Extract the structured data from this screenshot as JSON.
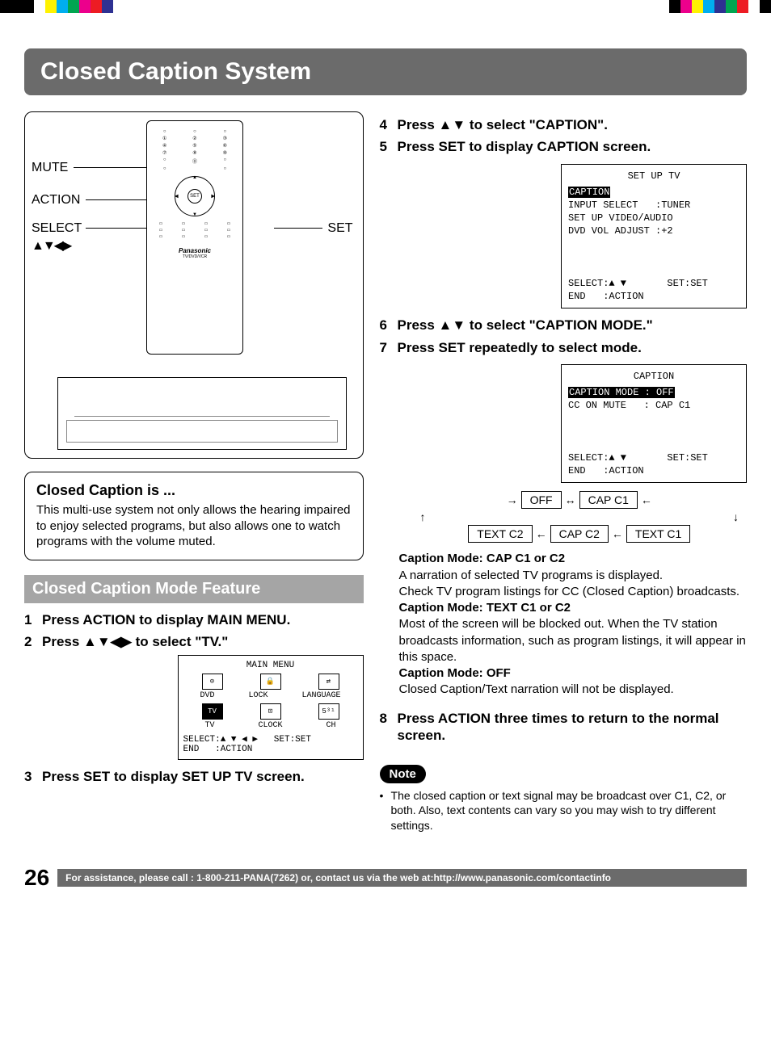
{
  "color_bars": {
    "left": [
      "#000000",
      "#000000",
      "#000000",
      "#ffffff",
      "#fff200",
      "#00aeef",
      "#00a651",
      "#ec008c",
      "#ed1c24",
      "#2e3192"
    ],
    "right": [
      "#ffffff",
      "#000000",
      "#ec008c",
      "#fff200",
      "#00aeef",
      "#2e3192",
      "#00a651",
      "#ed1c24",
      "#ffffff",
      "#000000"
    ]
  },
  "page": {
    "title": "Closed Caption System",
    "number": "26",
    "assistance": "For assistance, please call : 1-800-211-PANA(7262) or, contact us via the web at:http://www.panasonic.com/contactinfo"
  },
  "remote_labels": {
    "mute": "MUTE",
    "action": "ACTION",
    "select": "SELECT",
    "select_arrows": "▲▼◀▶",
    "set": "SET",
    "brand": "Panasonic",
    "model": "TV/DVD/VCR"
  },
  "info_box": {
    "heading": "Closed Caption is ...",
    "body": "This multi-use system not only allows the hearing impaired to enjoy selected programs, but also allows one to watch programs with the volume muted."
  },
  "section_header": "Closed Caption Mode Feature",
  "steps": {
    "s1": "Press ACTION to display MAIN MENU.",
    "s2": "Press ▲▼◀▶ to select \"TV.\"",
    "s3": "Press SET to display SET UP TV screen.",
    "s4": "Press ▲▼ to select \"CAPTION\".",
    "s5": "Press SET to display CAPTION screen.",
    "s6": "Press ▲▼ to select \"CAPTION MODE.\"",
    "s7": "Press SET repeatedly to select mode.",
    "s8": "Press ACTION three times to return to the normal screen."
  },
  "osd_main_menu": {
    "title": "MAIN MENU",
    "row1": [
      "DVD",
      "LOCK",
      "LANGUAGE"
    ],
    "row2": [
      "TV",
      "CLOCK",
      "CH"
    ],
    "selected": "TV",
    "footer": "SELECT:▲ ▼ ◀ ▶   SET:SET\nEND   :ACTION"
  },
  "osd_setup_tv": {
    "title": "SET UP TV",
    "highlight": "CAPTION",
    "lines": "INPUT SELECT   :TUNER\nSET UP VIDEO/AUDIO\nDVD VOL ADJUST :+2",
    "footer": "SELECT:▲ ▼       SET:SET\nEND   :ACTION"
  },
  "osd_caption": {
    "title": "CAPTION",
    "highlight": "CAPTION MODE : OFF",
    "lines": "CC ON MUTE   : CAP C1",
    "footer": "SELECT:▲ ▼       SET:SET\nEND   :ACTION"
  },
  "flow": {
    "boxes": [
      "OFF",
      "CAP C1",
      "TEXT C2",
      "CAP C2",
      "TEXT C1"
    ]
  },
  "mode_desc": {
    "h1": "Caption Mode: CAP C1 or C2",
    "p1": "A narration of selected TV programs is displayed.\nCheck TV program listings for CC (Closed Caption) broadcasts.",
    "h2": "Caption Mode: TEXT C1 or C2",
    "p2": "Most of the screen will be blocked out. When the TV station broadcasts information, such as program listings, it will appear in this space.",
    "h3": "Caption Mode: OFF",
    "p3": "Closed Caption/Text narration will not be displayed."
  },
  "note": {
    "label": "Note",
    "text": "The closed caption or text signal may be broadcast over C1, C2, or both. Also, text contents can vary so you may wish to try different settings."
  }
}
